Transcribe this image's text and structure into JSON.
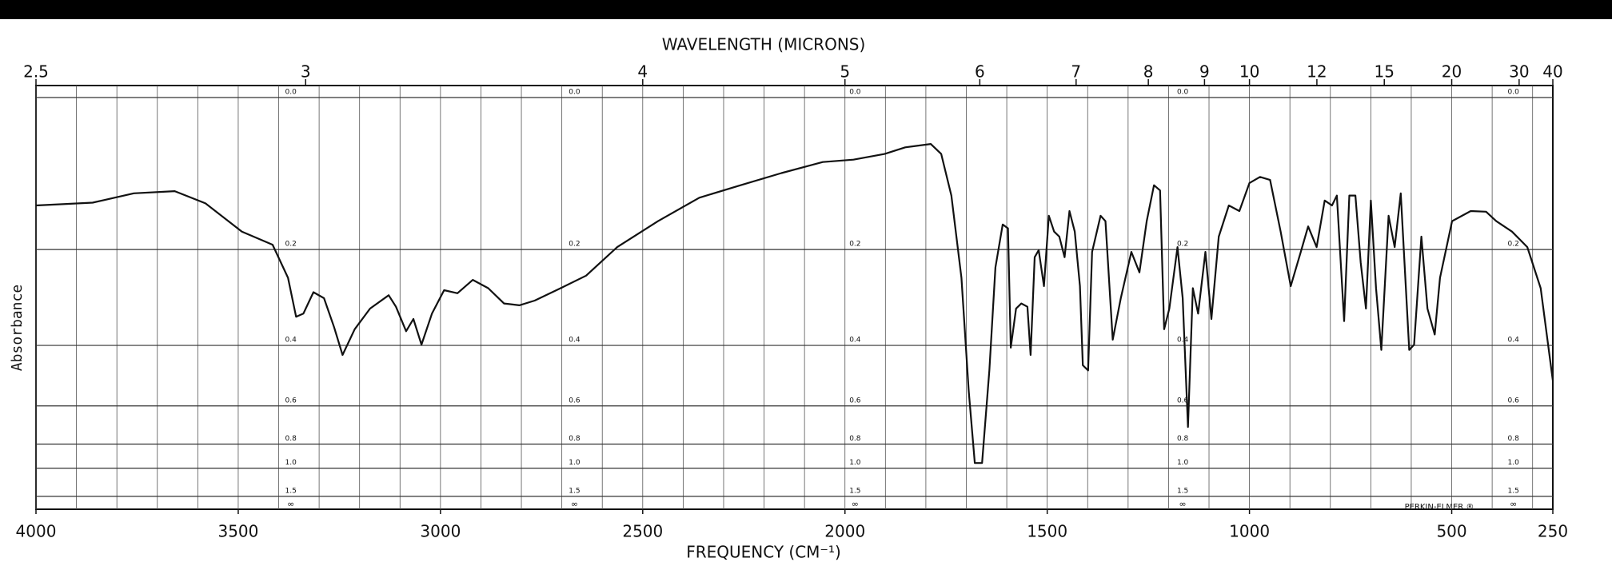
{
  "chart_data": {
    "type": "line",
    "title": "WAVELENGTH (MICRONS)",
    "x_label": "FREQUENCY (CM⁻¹)",
    "y_label": "Absorbance",
    "annotation": "PERKIN-ELMER ®",
    "y_infinity_label": "∞",
    "yscale": "transmittance",
    "color": "#111111",
    "grid": true,
    "x_grid_step": 100,
    "xlim": [
      4000,
      250
    ],
    "xticks": [
      4000,
      3500,
      3000,
      2500,
      2000,
      1500,
      1000,
      500,
      250
    ],
    "top_ticks": [
      2.5,
      3,
      4,
      5,
      6,
      7,
      8,
      9,
      10,
      12,
      15,
      20,
      30,
      40
    ],
    "ylim": [
      0,
      2
    ],
    "yticks": [
      {
        "value": 0,
        "label": "0.0"
      },
      0.2,
      0.4,
      0.6,
      0.8,
      {
        "value": 1,
        "label": "1.0"
      },
      1.5
    ],
    "x": [
      4000,
      3860,
      3758,
      3657,
      3581,
      3491,
      3415,
      3377,
      3357,
      3339,
      3314,
      3288,
      3263,
      3242,
      3212,
      3174,
      3128,
      3110,
      3085,
      3067,
      3047,
      3021,
      2991,
      2958,
      2920,
      2882,
      2843,
      2805,
      2767,
      2703,
      2640,
      2563,
      2462,
      2360,
      2258,
      2157,
      2055,
      1979,
      1902,
      1851,
      1788,
      1762,
      1737,
      1712,
      1694,
      1679,
      1661,
      1643,
      1628,
      1610,
      1597,
      1590,
      1577,
      1564,
      1549,
      1541,
      1531,
      1521,
      1508,
      1496,
      1483,
      1470,
      1457,
      1445,
      1432,
      1419,
      1412,
      1399,
      1389,
      1368,
      1356,
      1338,
      1318,
      1292,
      1272,
      1254,
      1236,
      1221,
      1211,
      1198,
      1178,
      1165,
      1152,
      1140,
      1127,
      1109,
      1094,
      1076,
      1051,
      1025,
      1000,
      974,
      949,
      923,
      898,
      873,
      855,
      834,
      814,
      796,
      784,
      766,
      753,
      738,
      725,
      712,
      700,
      687,
      674,
      656,
      641,
      626,
      605,
      593,
      575,
      560,
      542,
      529,
      499,
      453,
      415,
      390,
      351,
      313,
      280,
      250
    ],
    "values": [
      0.132,
      0.128,
      0.115,
      0.112,
      0.129,
      0.171,
      0.192,
      0.25,
      0.33,
      0.323,
      0.278,
      0.29,
      0.354,
      0.426,
      0.359,
      0.312,
      0.284,
      0.308,
      0.364,
      0.335,
      0.398,
      0.323,
      0.274,
      0.28,
      0.254,
      0.27,
      0.301,
      0.305,
      0.295,
      0.27,
      0.246,
      0.196,
      0.155,
      0.121,
      0.104,
      0.088,
      0.074,
      0.071,
      0.064,
      0.056,
      0.052,
      0.064,
      0.118,
      0.25,
      0.541,
      0.949,
      0.949,
      0.472,
      0.231,
      0.16,
      0.166,
      0.406,
      0.312,
      0.301,
      0.308,
      0.426,
      0.213,
      0.201,
      0.266,
      0.147,
      0.171,
      0.179,
      0.213,
      0.14,
      0.171,
      0.266,
      0.456,
      0.472,
      0.204,
      0.147,
      0.155,
      0.385,
      0.29,
      0.204,
      0.24,
      0.155,
      0.104,
      0.111,
      0.359,
      0.312,
      0.196,
      0.29,
      0.699,
      0.27,
      0.323,
      0.204,
      0.335,
      0.179,
      0.132,
      0.14,
      0.101,
      0.093,
      0.097,
      0.171,
      0.266,
      0.204,
      0.163,
      0.196,
      0.125,
      0.132,
      0.118,
      0.34,
      0.118,
      0.118,
      0.222,
      0.312,
      0.125,
      0.27,
      0.412,
      0.147,
      0.196,
      0.115,
      0.412,
      0.398,
      0.179,
      0.312,
      0.372,
      0.25,
      0.155,
      0.14,
      0.141,
      0.155,
      0.171,
      0.196,
      0.27,
      0.505
    ]
  }
}
